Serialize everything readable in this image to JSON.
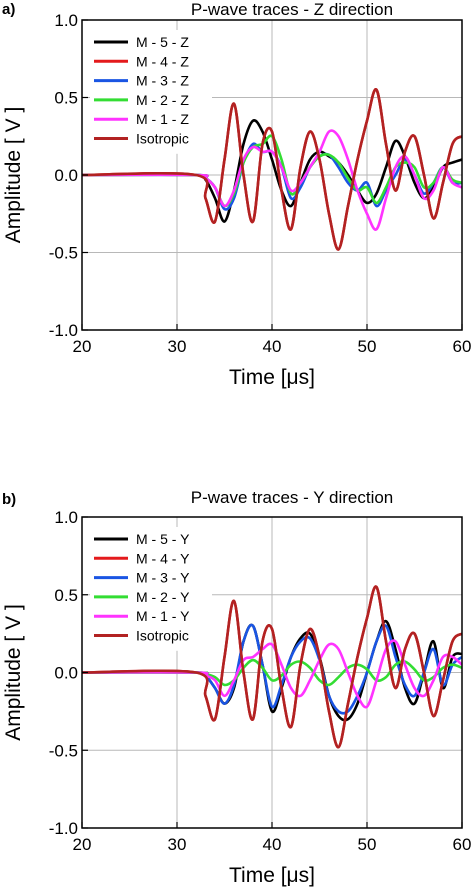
{
  "chart_data": [
    {
      "type": "line",
      "panel_label": "a)",
      "title": "P-wave traces - Z direction",
      "xlabel": "Time [μs]",
      "ylabel": "Amplitude [ V ]",
      "xlim": [
        20,
        60
      ],
      "ylim": [
        -1.0,
        1.0
      ],
      "xticks": [
        "20",
        "30",
        "40",
        "50",
        "60"
      ],
      "yticks": [
        "1.0",
        "0.5",
        "0.0",
        "-0.5",
        "-1.0"
      ],
      "grid": true,
      "legend_position": "top-left",
      "series": [
        {
          "name": "M - 5 - Z",
          "color": "#000000",
          "x": [
            20,
            32,
            33,
            34,
            35,
            36,
            37,
            38,
            39,
            40,
            41,
            42,
            43,
            44,
            45,
            46,
            47,
            48,
            49,
            50,
            51,
            52,
            53,
            54,
            55,
            56,
            57,
            58,
            59,
            60
          ],
          "y": [
            0,
            0,
            -0.03,
            -0.15,
            -0.3,
            -0.1,
            0.2,
            0.35,
            0.28,
            0.1,
            -0.1,
            -0.2,
            -0.05,
            0.1,
            0.15,
            0.12,
            0.08,
            0.0,
            -0.1,
            -0.18,
            -0.12,
            0.05,
            0.22,
            0.12,
            -0.05,
            -0.15,
            -0.08,
            0.05,
            0.08,
            0.1
          ]
        },
        {
          "name": "M - 4 - Z",
          "color": "#e41a1c",
          "x": [
            20,
            32,
            33,
            34,
            35,
            36,
            37,
            38,
            39,
            40,
            41,
            42,
            43,
            44,
            45,
            46,
            47,
            48,
            49,
            50,
            51,
            52,
            53,
            54,
            55,
            56,
            57,
            58,
            59,
            60
          ],
          "y": [
            0,
            0,
            -0.15,
            -0.3,
            0.1,
            0.46,
            0.0,
            -0.3,
            0.2,
            0.28,
            -0.1,
            -0.35,
            0.05,
            0.28,
            0.1,
            -0.25,
            -0.48,
            -0.2,
            0.1,
            0.35,
            0.55,
            0.2,
            -0.1,
            0.15,
            0.25,
            0.0,
            -0.28,
            -0.05,
            0.2,
            0.25
          ]
        },
        {
          "name": "M - 3 - Z",
          "color": "#1a55e3",
          "x": [
            20,
            32,
            33,
            34,
            35,
            36,
            37,
            38,
            39,
            40,
            41,
            42,
            43,
            44,
            45,
            46,
            47,
            48,
            49,
            50,
            51,
            52,
            53,
            54,
            55,
            56,
            57,
            58,
            59,
            60
          ],
          "y": [
            0,
            0,
            -0.02,
            -0.08,
            -0.22,
            -0.15,
            0.08,
            0.2,
            0.15,
            0.15,
            0.05,
            -0.15,
            -0.08,
            0.05,
            0.12,
            0.13,
            0.05,
            -0.05,
            -0.1,
            -0.05,
            -0.2,
            -0.1,
            0.0,
            0.1,
            0.0,
            -0.12,
            -0.05,
            0.05,
            -0.05,
            -0.05
          ]
        },
        {
          "name": "M - 2 - Z",
          "color": "#33dd33",
          "x": [
            20,
            32,
            33,
            34,
            35,
            36,
            37,
            38,
            39,
            40,
            41,
            42,
            43,
            44,
            45,
            46,
            47,
            48,
            49,
            50,
            51,
            52,
            53,
            54,
            55,
            56,
            57,
            58,
            59,
            60
          ],
          "y": [
            0,
            0,
            -0.02,
            -0.08,
            -0.2,
            -0.12,
            0.08,
            0.18,
            0.2,
            0.25,
            0.1,
            -0.12,
            -0.05,
            0.05,
            0.12,
            0.13,
            0.08,
            -0.02,
            -0.1,
            -0.08,
            -0.18,
            -0.08,
            0.05,
            0.08,
            0.05,
            -0.08,
            -0.05,
            0.05,
            -0.03,
            -0.05
          ]
        },
        {
          "name": "M - 1 - Z",
          "color": "#ff33ff",
          "x": [
            20,
            32,
            33,
            34,
            35,
            36,
            37,
            38,
            39,
            40,
            41,
            42,
            43,
            44,
            45,
            46,
            47,
            48,
            49,
            50,
            51,
            52,
            53,
            54,
            55,
            56,
            57,
            58,
            59,
            60
          ],
          "y": [
            0,
            0,
            -0.02,
            -0.08,
            -0.2,
            -0.1,
            0.1,
            0.18,
            0.15,
            0.15,
            0.05,
            -0.1,
            -0.05,
            0.05,
            0.15,
            0.28,
            0.25,
            0.1,
            -0.1,
            -0.25,
            -0.35,
            -0.15,
            0.05,
            0.12,
            0.0,
            -0.15,
            -0.1,
            0.05,
            -0.05,
            -0.08
          ]
        },
        {
          "name": "Isotropic",
          "color": "#b22222",
          "x": [
            20,
            32,
            33,
            34,
            35,
            36,
            37,
            38,
            39,
            40,
            41,
            42,
            43,
            44,
            45,
            46,
            47,
            48,
            49,
            50,
            51,
            52,
            53,
            54,
            55,
            56,
            57,
            58,
            59,
            60
          ],
          "y": [
            0,
            0,
            -0.15,
            -0.3,
            0.1,
            0.46,
            0.0,
            -0.3,
            0.2,
            0.28,
            -0.1,
            -0.35,
            0.05,
            0.28,
            0.1,
            -0.25,
            -0.48,
            -0.2,
            0.1,
            0.35,
            0.55,
            0.2,
            -0.1,
            0.15,
            0.25,
            0.0,
            -0.28,
            -0.05,
            0.2,
            0.25
          ]
        }
      ]
    },
    {
      "type": "line",
      "panel_label": "b)",
      "title": "P-wave traces - Y direction",
      "xlabel": "Time [μs]",
      "ylabel": "Amplitude [ V ]",
      "xlim": [
        20,
        60
      ],
      "ylim": [
        -1.0,
        1.0
      ],
      "xticks": [
        "20",
        "30",
        "40",
        "50",
        "60"
      ],
      "yticks": [
        "1.0",
        "0.5",
        "0.0",
        "-0.5",
        "-1.0"
      ],
      "grid": true,
      "legend_position": "top-left",
      "series": [
        {
          "name": "M - 5 - Y",
          "color": "#000000",
          "x": [
            20,
            32,
            33,
            34,
            35,
            36,
            37,
            38,
            39,
            40,
            41,
            42,
            43,
            44,
            45,
            46,
            47,
            48,
            49,
            50,
            51,
            52,
            53,
            54,
            55,
            56,
            57,
            58,
            59,
            60
          ],
          "y": [
            0,
            0,
            -0.02,
            -0.1,
            -0.2,
            -0.1,
            0.2,
            0.3,
            0.05,
            -0.25,
            -0.1,
            0.1,
            0.22,
            0.25,
            0.1,
            -0.15,
            -0.28,
            -0.3,
            -0.2,
            0.0,
            0.2,
            0.33,
            0.15,
            -0.1,
            -0.2,
            0.0,
            0.2,
            -0.1,
            0.1,
            0.12
          ]
        },
        {
          "name": "M - 4 - Y",
          "color": "#e41a1c",
          "x": [
            20,
            32,
            33,
            34,
            35,
            36,
            37,
            38,
            39,
            40,
            41,
            42,
            43,
            44,
            45,
            46,
            47,
            48,
            49,
            50,
            51,
            52,
            53,
            54,
            55,
            56,
            57,
            58,
            59,
            60
          ],
          "y": [
            0,
            0,
            -0.15,
            -0.3,
            0.1,
            0.46,
            0.0,
            -0.3,
            0.2,
            0.28,
            -0.1,
            -0.35,
            0.05,
            0.28,
            0.1,
            -0.25,
            -0.48,
            -0.2,
            0.1,
            0.35,
            0.55,
            0.2,
            -0.1,
            0.15,
            0.25,
            0.0,
            -0.28,
            -0.05,
            0.2,
            0.25
          ]
        },
        {
          "name": "M - 3 - Y",
          "color": "#1a55e3",
          "x": [
            20,
            32,
            33,
            34,
            35,
            36,
            37,
            38,
            39,
            40,
            41,
            42,
            43,
            44,
            45,
            46,
            47,
            48,
            49,
            50,
            51,
            52,
            53,
            54,
            55,
            56,
            57,
            58,
            59,
            60
          ],
          "y": [
            0,
            0,
            -0.02,
            -0.1,
            -0.2,
            -0.08,
            0.2,
            0.3,
            0.05,
            -0.22,
            -0.08,
            0.1,
            0.2,
            0.22,
            0.08,
            -0.15,
            -0.25,
            -0.25,
            -0.15,
            0.0,
            0.2,
            0.3,
            0.1,
            -0.08,
            -0.15,
            0.0,
            0.15,
            -0.08,
            0.05,
            0.1
          ]
        },
        {
          "name": "M - 2 - Y",
          "color": "#33dd33",
          "x": [
            20,
            32,
            33,
            34,
            35,
            36,
            37,
            38,
            39,
            40,
            41,
            42,
            43,
            44,
            45,
            46,
            47,
            48,
            49,
            50,
            51,
            52,
            53,
            54,
            55,
            56,
            57,
            58,
            59,
            60
          ],
          "y": [
            0,
            0,
            -0.01,
            -0.03,
            -0.08,
            -0.05,
            0.03,
            0.08,
            0.03,
            -0.05,
            -0.02,
            0.05,
            0.07,
            0.03,
            -0.05,
            -0.08,
            -0.03,
            0.03,
            0.05,
            0.02,
            -0.05,
            -0.03,
            0.05,
            0.07,
            0.02,
            -0.05,
            -0.03,
            0.03,
            0.05,
            0.03
          ]
        },
        {
          "name": "M - 1 - Y",
          "color": "#ff33ff",
          "x": [
            20,
            32,
            33,
            34,
            35,
            36,
            37,
            38,
            39,
            40,
            41,
            42,
            43,
            44,
            45,
            46,
            47,
            48,
            49,
            50,
            51,
            52,
            53,
            54,
            55,
            56,
            57,
            58,
            59,
            60
          ],
          "y": [
            0,
            0,
            -0.02,
            -0.05,
            -0.15,
            -0.05,
            0.08,
            0.1,
            0.15,
            0.18,
            0.05,
            -0.1,
            -0.15,
            -0.05,
            0.08,
            0.18,
            0.15,
            0.0,
            -0.15,
            -0.22,
            -0.05,
            0.15,
            0.2,
            0.05,
            -0.1,
            -0.15,
            -0.05,
            0.1,
            0.1,
            0.05
          ]
        },
        {
          "name": "Isotropic",
          "color": "#b22222",
          "x": [
            20,
            32,
            33,
            34,
            35,
            36,
            37,
            38,
            39,
            40,
            41,
            42,
            43,
            44,
            45,
            46,
            47,
            48,
            49,
            50,
            51,
            52,
            53,
            54,
            55,
            56,
            57,
            58,
            59,
            60
          ],
          "y": [
            0,
            0,
            -0.15,
            -0.3,
            0.1,
            0.46,
            0.0,
            -0.3,
            0.2,
            0.28,
            -0.1,
            -0.35,
            0.05,
            0.28,
            0.1,
            -0.25,
            -0.48,
            -0.2,
            0.1,
            0.35,
            0.55,
            0.2,
            -0.1,
            0.15,
            0.25,
            0.0,
            -0.28,
            -0.05,
            0.2,
            0.25
          ]
        }
      ]
    }
  ]
}
